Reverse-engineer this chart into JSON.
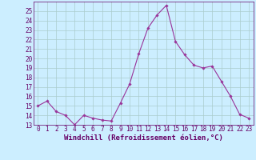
{
  "x": [
    0,
    1,
    2,
    3,
    4,
    5,
    6,
    7,
    8,
    9,
    10,
    11,
    12,
    13,
    14,
    15,
    16,
    17,
    18,
    19,
    20,
    21,
    22,
    23
  ],
  "y": [
    15.0,
    15.5,
    14.4,
    14.0,
    13.0,
    14.0,
    13.7,
    13.5,
    13.4,
    15.3,
    17.3,
    20.5,
    23.2,
    24.6,
    25.6,
    21.8,
    20.4,
    19.3,
    19.0,
    19.2,
    17.6,
    16.0,
    14.1,
    13.7
  ],
  "line_color": "#993399",
  "marker": "D",
  "marker_size": 1.8,
  "bg_color": "#cceeff",
  "grid_color": "#aacccc",
  "xlabel": "Windchill (Refroidissement éolien,°C)",
  "ylim": [
    13,
    26
  ],
  "xlim_min": -0.5,
  "xlim_max": 23.5,
  "yticks": [
    13,
    14,
    15,
    16,
    17,
    18,
    19,
    20,
    21,
    22,
    23,
    24,
    25
  ],
  "xticks": [
    0,
    1,
    2,
    3,
    4,
    5,
    6,
    7,
    8,
    9,
    10,
    11,
    12,
    13,
    14,
    15,
    16,
    17,
    18,
    19,
    20,
    21,
    22,
    23
  ],
  "tick_fontsize": 5.5,
  "label_fontsize": 6.5,
  "label_color": "#660066",
  "tick_color": "#660066",
  "spine_color": "#660066",
  "line_width": 0.8
}
